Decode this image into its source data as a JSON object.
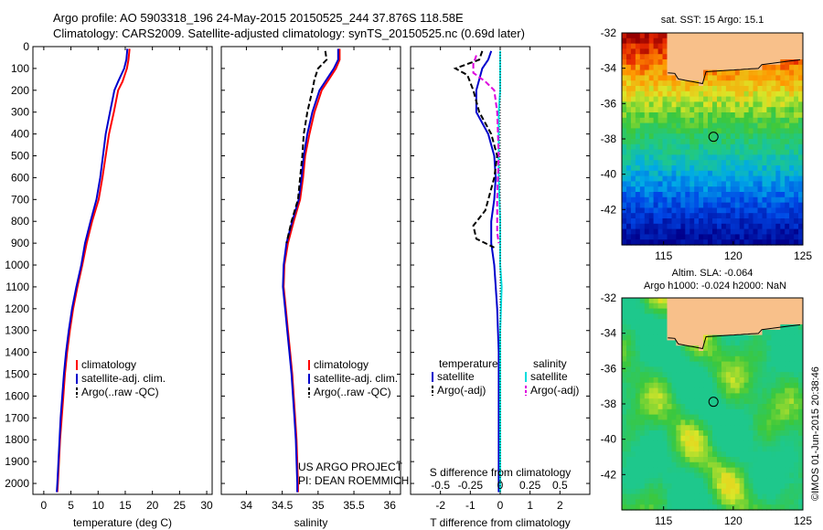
{
  "title_line1": "Argo profile: AO 5903318_196 24-May-2015 20150525_244 37.876S 118.58E",
  "title_line2": "Climatology: CARS2009. Satellite-adjusted climatology: synTS_20150525.nc (0.69d later)",
  "credit": "©IMOS 01-Jun-2015 20:38:46",
  "project_line1": "US ARGO PROJECT",
  "project_line2": "PI: DEAN ROEMMICH",
  "colors": {
    "climatology": "#ff0000",
    "satellite": "#0000cc",
    "argo": "#000000",
    "satellite_s": "#00dddd",
    "argo_s": "#dd00dd"
  },
  "chart_data": [
    {
      "id": "temperature",
      "type": "line",
      "xlabel": "temperature (deg C)",
      "ylabel": "",
      "xlim": [
        -2,
        31
      ],
      "ylim": [
        2050,
        0
      ],
      "xticks": [
        0,
        5,
        10,
        15,
        20,
        25,
        30
      ],
      "yticks": [
        0,
        100,
        200,
        300,
        400,
        500,
        600,
        700,
        800,
        900,
        1000,
        1100,
        1200,
        1300,
        1400,
        1500,
        1600,
        1700,
        1800,
        1900,
        2000
      ],
      "legend": [
        "climatology",
        "satellite-adj. clim.",
        "Argo(..raw -QC)"
      ],
      "series": [
        {
          "name": "climatology",
          "color": "climatology",
          "points": [
            [
              15.8,
              10
            ],
            [
              15.6,
              60
            ],
            [
              15.3,
              100
            ],
            [
              14.5,
              160
            ],
            [
              13.7,
              200
            ],
            [
              12.9,
              300
            ],
            [
              12.0,
              400
            ],
            [
              11.4,
              500
            ],
            [
              10.8,
              600
            ],
            [
              10.1,
              700
            ],
            [
              8.9,
              800
            ],
            [
              7.9,
              900
            ],
            [
              7.1,
              1000
            ],
            [
              6.2,
              1100
            ],
            [
              5.4,
              1200
            ],
            [
              4.8,
              1300
            ],
            [
              4.3,
              1400
            ],
            [
              3.9,
              1500
            ],
            [
              3.6,
              1600
            ],
            [
              3.3,
              1700
            ],
            [
              3.0,
              1800
            ],
            [
              2.8,
              1900
            ],
            [
              2.6,
              2000
            ],
            [
              2.5,
              2040
            ]
          ]
        },
        {
          "name": "satellite-adj. clim.",
          "color": "satellite",
          "points": [
            [
              15.4,
              10
            ],
            [
              15.2,
              60
            ],
            [
              14.8,
              100
            ],
            [
              13.7,
              160
            ],
            [
              13.0,
              200
            ],
            [
              12.2,
              300
            ],
            [
              11.4,
              400
            ],
            [
              10.9,
              500
            ],
            [
              10.4,
              600
            ],
            [
              9.7,
              700
            ],
            [
              8.6,
              800
            ],
            [
              7.6,
              900
            ],
            [
              6.9,
              1000
            ],
            [
              6.0,
              1100
            ],
            [
              5.2,
              1200
            ],
            [
              4.6,
              1300
            ],
            [
              4.1,
              1400
            ],
            [
              3.7,
              1500
            ],
            [
              3.4,
              1600
            ],
            [
              3.1,
              1700
            ],
            [
              2.9,
              1800
            ],
            [
              2.7,
              1900
            ],
            [
              2.5,
              2000
            ],
            [
              2.4,
              2040
            ]
          ]
        }
      ]
    },
    {
      "id": "salinity",
      "type": "line",
      "xlabel": "salinity",
      "ylabel": "",
      "xlim": [
        33.65,
        36.15
      ],
      "ylim": [
        2050,
        0
      ],
      "xticks": [
        34,
        34.5,
        35,
        35.5,
        36
      ],
      "legend": [
        "climatology",
        "satellite-adj. clim.",
        "Argo(..raw -QC)"
      ],
      "series": [
        {
          "name": "climatology",
          "color": "climatology",
          "points": [
            [
              35.3,
              10
            ],
            [
              35.3,
              60
            ],
            [
              35.25,
              100
            ],
            [
              35.15,
              150
            ],
            [
              35.05,
              200
            ],
            [
              34.95,
              300
            ],
            [
              34.88,
              400
            ],
            [
              34.82,
              500
            ],
            [
              34.79,
              600
            ],
            [
              34.75,
              700
            ],
            [
              34.66,
              800
            ],
            [
              34.58,
              900
            ],
            [
              34.53,
              1000
            ],
            [
              34.52,
              1100
            ],
            [
              34.55,
              1200
            ],
            [
              34.58,
              1300
            ],
            [
              34.61,
              1400
            ],
            [
              34.64,
              1500
            ],
            [
              34.66,
              1600
            ],
            [
              34.68,
              1700
            ],
            [
              34.7,
              1800
            ],
            [
              34.71,
              1900
            ],
            [
              34.72,
              2000
            ],
            [
              34.72,
              2040
            ]
          ]
        },
        {
          "name": "satellite-adj. clim.",
          "color": "satellite",
          "points": [
            [
              35.28,
              10
            ],
            [
              35.28,
              60
            ],
            [
              35.22,
              100
            ],
            [
              35.12,
              150
            ],
            [
              35.02,
              200
            ],
            [
              34.92,
              300
            ],
            [
              34.85,
              400
            ],
            [
              34.8,
              500
            ],
            [
              34.77,
              600
            ],
            [
              34.73,
              700
            ],
            [
              34.64,
              800
            ],
            [
              34.56,
              900
            ],
            [
              34.52,
              1000
            ],
            [
              34.51,
              1100
            ],
            [
              34.54,
              1200
            ],
            [
              34.57,
              1300
            ],
            [
              34.6,
              1400
            ],
            [
              34.63,
              1500
            ],
            [
              34.65,
              1600
            ],
            [
              34.67,
              1700
            ],
            [
              34.69,
              1800
            ],
            [
              34.7,
              1900
            ],
            [
              34.71,
              2000
            ],
            [
              34.71,
              2040
            ]
          ]
        },
        {
          "name": "Argo(..raw -QC)",
          "color": "argo",
          "dashed": true,
          "points": [
            [
              35.1,
              20
            ],
            [
              35.12,
              60
            ],
            [
              35.0,
              100
            ],
            [
              34.95,
              150
            ],
            [
              34.92,
              200
            ],
            [
              34.85,
              300
            ],
            [
              34.8,
              400
            ],
            [
              34.78,
              500
            ],
            [
              34.75,
              600
            ],
            [
              34.72,
              700
            ],
            [
              34.63,
              800
            ],
            [
              34.56,
              900
            ]
          ]
        }
      ]
    },
    {
      "id": "difference",
      "type": "line",
      "xlabel": "T difference from climatology",
      "x2label": "S difference from climatology",
      "xlim": [
        -3,
        3
      ],
      "ylim": [
        2050,
        0
      ],
      "xticks": [
        -2,
        -1,
        0,
        1,
        2
      ],
      "x2ticks": [
        "-0.5",
        "-0.25",
        "0",
        "0.25",
        "0.5"
      ],
      "legend_temperature_title": "temperature",
      "legend_salinity_title": "salinity",
      "legend_sat": "satellite",
      "legend_argo": "Argo(-adj)",
      "series": [
        {
          "name": "satellite",
          "color": "satellite",
          "points": [
            [
              -0.3,
              20
            ],
            [
              -0.4,
              60
            ],
            [
              -0.6,
              100
            ],
            [
              -0.8,
              200
            ],
            [
              -0.8,
              300
            ],
            [
              -0.4,
              400
            ],
            [
              -0.2,
              500
            ],
            [
              -0.15,
              600
            ],
            [
              -0.2,
              700
            ],
            [
              -0.3,
              800
            ],
            [
              -0.3,
              900
            ],
            [
              -0.2,
              1000
            ],
            [
              -0.15,
              1100
            ],
            [
              -0.1,
              1200
            ],
            [
              -0.05,
              1400
            ],
            [
              -0.05,
              1600
            ],
            [
              -0.05,
              2040
            ]
          ]
        },
        {
          "name": "satellite",
          "color": "satellite_s",
          "points": [
            [
              0.0,
              20
            ],
            [
              0.0,
              100
            ],
            [
              0.0,
              200
            ],
            [
              -0.05,
              300
            ],
            [
              -0.05,
              600
            ],
            [
              0.0,
              800
            ],
            [
              0.0,
              1000
            ],
            [
              0.05,
              1100
            ],
            [
              0.0,
              1300
            ],
            [
              0.0,
              2040
            ]
          ]
        },
        {
          "name": "Argo(-adj)",
          "color": "argo",
          "dashed": true,
          "points": [
            [
              -0.6,
              20
            ],
            [
              -0.7,
              60
            ],
            [
              -1.5,
              100
            ],
            [
              -1.1,
              130
            ],
            [
              -0.9,
              200
            ],
            [
              -0.7,
              300
            ],
            [
              -0.3,
              400
            ],
            [
              -0.1,
              500
            ],
            [
              -0.2,
              600
            ],
            [
              -0.5,
              750
            ],
            [
              -0.9,
              820
            ],
            [
              -0.8,
              880
            ],
            [
              -0.2,
              920
            ]
          ]
        },
        {
          "name": "Argo(-adj)",
          "color": "argo_s",
          "dashed": true,
          "points": [
            [
              -0.8,
              40
            ],
            [
              -0.9,
              80
            ],
            [
              -0.9,
              120
            ],
            [
              -0.5,
              160
            ],
            [
              -0.2,
              200
            ],
            [
              -0.1,
              300
            ],
            [
              -0.05,
              500
            ],
            [
              -0.1,
              700
            ],
            [
              -0.1,
              850
            ],
            [
              -0.05,
              900
            ]
          ]
        }
      ]
    },
    {
      "id": "sst_map",
      "type": "heatmap",
      "title": "sat. SST: 15 Argo: 15.1",
      "xlim": [
        112,
        125
      ],
      "ylim": [
        -44,
        -32
      ],
      "xticks": [
        115,
        120,
        125
      ],
      "yticks": [
        -32,
        -34,
        -36,
        -38,
        -40,
        -42
      ],
      "marker": [
        118.58,
        -37.88
      ]
    },
    {
      "id": "sla_map",
      "type": "heatmap",
      "title": "Altim. SLA: -0.064",
      "subtitle": "Argo h1000: -0.024 h2000: NaN",
      "xlim": [
        112,
        125
      ],
      "ylim": [
        -44,
        -32
      ],
      "xticks": [
        115,
        120,
        125
      ],
      "yticks": [
        -32,
        -34,
        -36,
        -38,
        -40,
        -42
      ],
      "marker": [
        118.58,
        -37.88
      ]
    }
  ]
}
